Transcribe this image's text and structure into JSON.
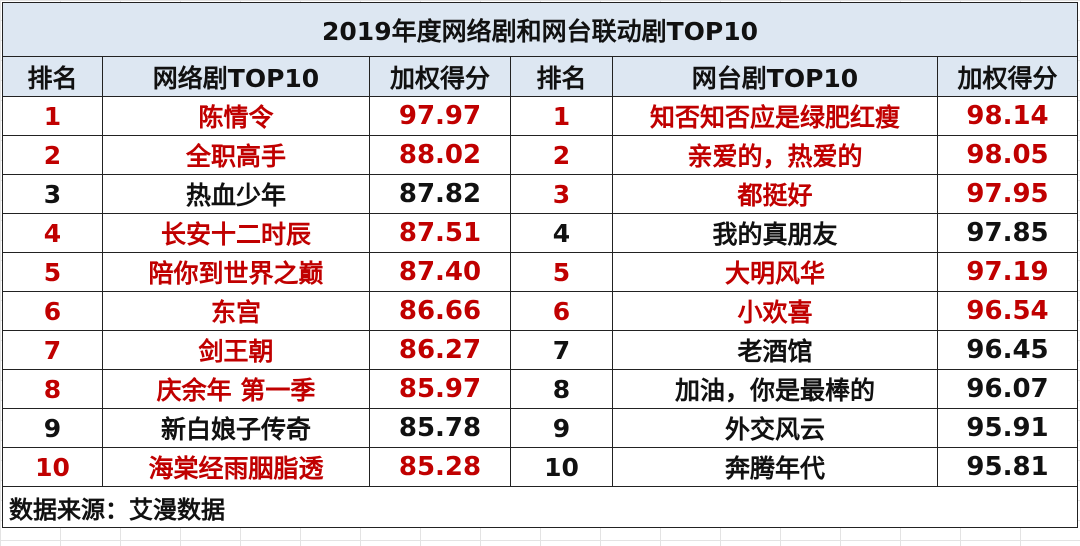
{
  "title": "2019年度网络剧和网台联动剧TOP10",
  "headers": {
    "rank1": "排名",
    "web_title": "网络剧TOP10",
    "score1": "加权得分",
    "rank2": "排名",
    "tv_title": "网台剧TOP10",
    "score2": "加权得分"
  },
  "colors": {
    "highlight": "#c00000",
    "header_bg": "#dde7f2",
    "normal_text": "#111111"
  },
  "rows": [
    {
      "web_rank": "1",
      "web_name": "陈情令",
      "web_score": "97.97",
      "web_highlight": true,
      "tv_rank": "1",
      "tv_name": "知否知否应是绿肥红瘦",
      "tv_score": "98.14",
      "tv_highlight": true
    },
    {
      "web_rank": "2",
      "web_name": "全职高手",
      "web_score": "88.02",
      "web_highlight": true,
      "tv_rank": "2",
      "tv_name": "亲爱的，热爱的",
      "tv_score": "98.05",
      "tv_highlight": true
    },
    {
      "web_rank": "3",
      "web_name": "热血少年",
      "web_score": "87.82",
      "web_highlight": false,
      "tv_rank": "3",
      "tv_name": "都挺好",
      "tv_score": "97.95",
      "tv_highlight": true
    },
    {
      "web_rank": "4",
      "web_name": "长安十二时辰",
      "web_score": "87.51",
      "web_highlight": true,
      "tv_rank": "4",
      "tv_name": "我的真朋友",
      "tv_score": "97.85",
      "tv_highlight": false
    },
    {
      "web_rank": "5",
      "web_name": "陪你到世界之巅",
      "web_score": "87.40",
      "web_highlight": true,
      "tv_rank": "5",
      "tv_name": "大明风华",
      "tv_score": "97.19",
      "tv_highlight": true
    },
    {
      "web_rank": "6",
      "web_name": "东宫",
      "web_score": "86.66",
      "web_highlight": true,
      "tv_rank": "6",
      "tv_name": "小欢喜",
      "tv_score": "96.54",
      "tv_highlight": true
    },
    {
      "web_rank": "7",
      "web_name": "剑王朝",
      "web_score": "86.27",
      "web_highlight": true,
      "tv_rank": "7",
      "tv_name": "老酒馆",
      "tv_score": "96.45",
      "tv_highlight": false
    },
    {
      "web_rank": "8",
      "web_name": "庆余年 第一季",
      "web_score": "85.97",
      "web_highlight": true,
      "tv_rank": "8",
      "tv_name": "加油，你是最棒的",
      "tv_score": "96.07",
      "tv_highlight": false
    },
    {
      "web_rank": "9",
      "web_name": "新白娘子传奇",
      "web_score": "85.78",
      "web_highlight": false,
      "tv_rank": "9",
      "tv_name": "外交风云",
      "tv_score": "95.91",
      "tv_highlight": false
    },
    {
      "web_rank": "10",
      "web_name": "海棠经雨胭脂透",
      "web_score": "85.28",
      "web_highlight": true,
      "tv_rank": "10",
      "tv_name": "奔腾年代",
      "tv_score": "95.81",
      "tv_highlight": false
    }
  ],
  "source": "数据来源：艾漫数据"
}
